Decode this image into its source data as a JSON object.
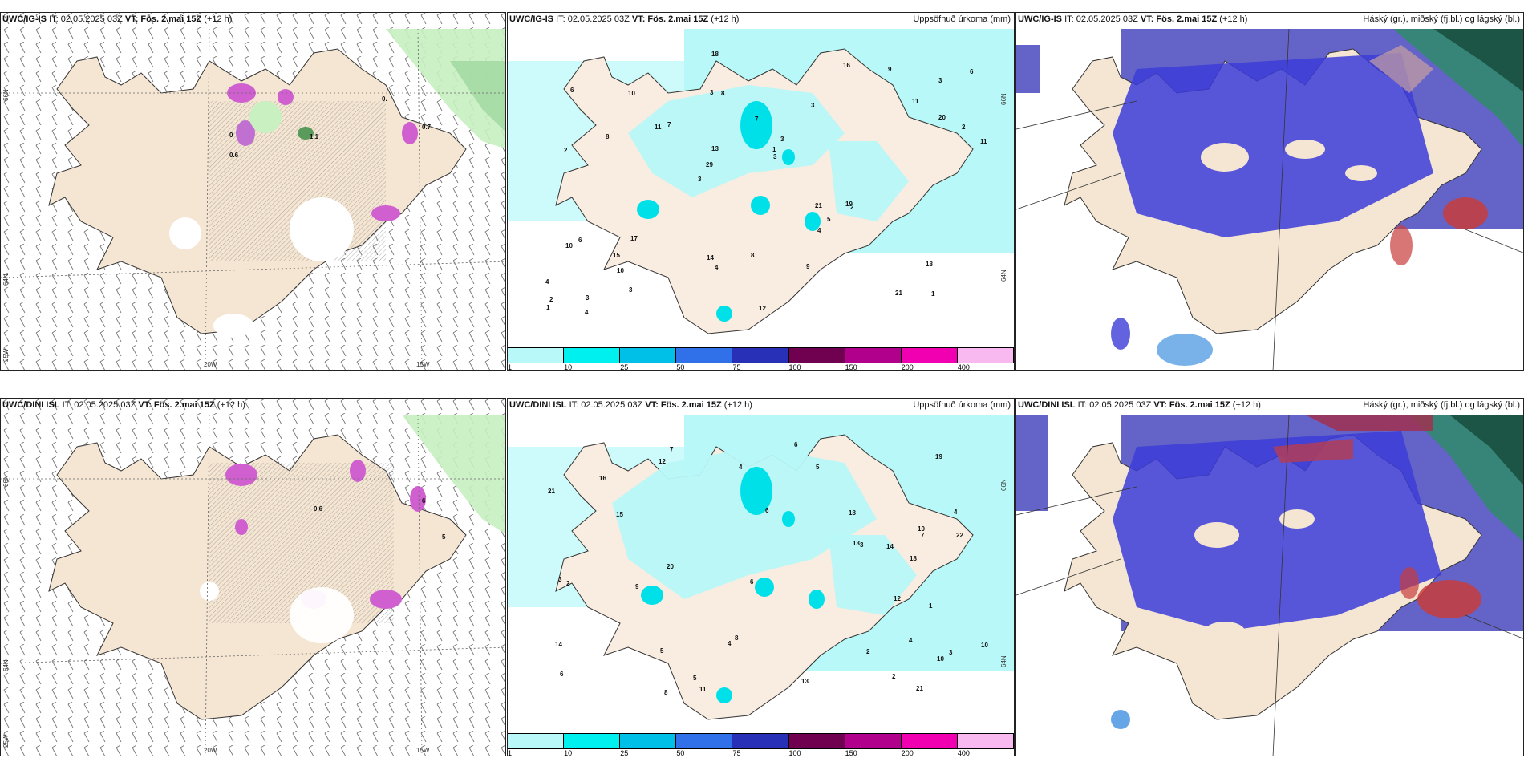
{
  "rows": [
    {
      "wind": {
        "model": "UWC/IG-IS",
        "it": "IT: 02.05.2025 03Z",
        "vt": "VT: Fös. 2.mai 15Z",
        "lead": "(+12 h)",
        "labels": [
          "0.6",
          "1.1",
          "0.",
          "0.7",
          "0"
        ]
      },
      "precip": {
        "model": "UWC/IG-IS",
        "it": "IT: 02.05.2025 03Z",
        "vt": "VT: Fös. 2.mai 15Z",
        "lead": "(+12 h)",
        "right_title": "Uppsöfnuð úrkoma (mm)"
      },
      "cloud": {
        "model": "UWC/IG-IS",
        "it": "IT: 02.05.2025 03Z",
        "vt": "VT: Fös. 2.mai 15Z",
        "lead": "(+12 h)",
        "right_title": "Háský (gr.), miðský (fj.bl.) og lágský (bl.)"
      }
    },
    {
      "wind": {
        "model": "UWC/DINI ISL",
        "it": "IT: 02.05.2025 03Z",
        "vt": "VT: Fös. 2.mai 15Z",
        "lead": "(+12 h)",
        "labels": [
          "0.6",
          "6",
          "5"
        ]
      },
      "precip": {
        "model": "UWC/DINI ISL",
        "it": "IT: 02.05.2025 03Z",
        "vt": "VT: Fös. 2.mai 15Z",
        "lead": "(+12 h)",
        "right_title": "Uppsöfnuð úrkoma (mm)"
      },
      "cloud": {
        "model": "UWC/DINI ISL",
        "it": "IT: 02.05.2025 03Z",
        "vt": "VT: Fös. 2.mai 15Z",
        "lead": "(+12 h)",
        "right_title": "Háský (gr.), miðský (fj.bl.) og lágský (bl.)"
      }
    }
  ],
  "axis_labels": {
    "lat_66": "66N",
    "lat_64": "64N",
    "lon_25": "25W",
    "lon_20": "20W",
    "lon_15": "15W",
    "lon_right_66": "66N",
    "lon_right_64": "64N"
  },
  "colorbar": {
    "colors": [
      "#b8f8f8",
      "#00f0f0",
      "#00c0e8",
      "#3070e8",
      "#2830b8",
      "#700050",
      "#b0008c",
      "#f000b0",
      "#f8b8f0"
    ],
    "labels": [
      "1",
      "10",
      "25",
      "50",
      "75",
      "100",
      "150",
      "200",
      "400"
    ]
  },
  "colors": {
    "land": "#f5e6d3",
    "precip_light": "#b8f8f8",
    "precip_mid": "#00e0e8",
    "cloud_high": "#6464c8",
    "cloud_mid": "#3c3cd8",
    "cloud_green": "#2e8b6a",
    "cloud_red": "#c83c3c"
  },
  "precip_numbers_top": [
    "1",
    "2",
    "3",
    "3",
    "3",
    "3",
    "3",
    "7",
    "6",
    "7",
    "4",
    "10",
    "8",
    "3",
    "2",
    "6",
    "18",
    "11",
    "21",
    "20",
    "29",
    "14",
    "13",
    "10",
    "16",
    "17",
    "21",
    "18",
    "19",
    "12",
    "11",
    "8",
    "4",
    "3",
    "2",
    "1",
    "2",
    "4",
    "3",
    "10",
    "11",
    "6",
    "5",
    "9",
    "15",
    "4",
    "1",
    "8",
    "9"
  ],
  "precip_numbers_bottom": [
    "4",
    "4",
    "3",
    "6",
    "6",
    "7",
    "10",
    "5",
    "19",
    "15",
    "22",
    "21",
    "18",
    "11",
    "14",
    "16",
    "10",
    "12",
    "8",
    "7",
    "3",
    "2",
    "13",
    "13",
    "5",
    "4",
    "6",
    "5",
    "18",
    "10",
    "9",
    "2",
    "8",
    "6",
    "1",
    "2",
    "3",
    "4",
    "21",
    "20",
    "12",
    "14"
  ]
}
